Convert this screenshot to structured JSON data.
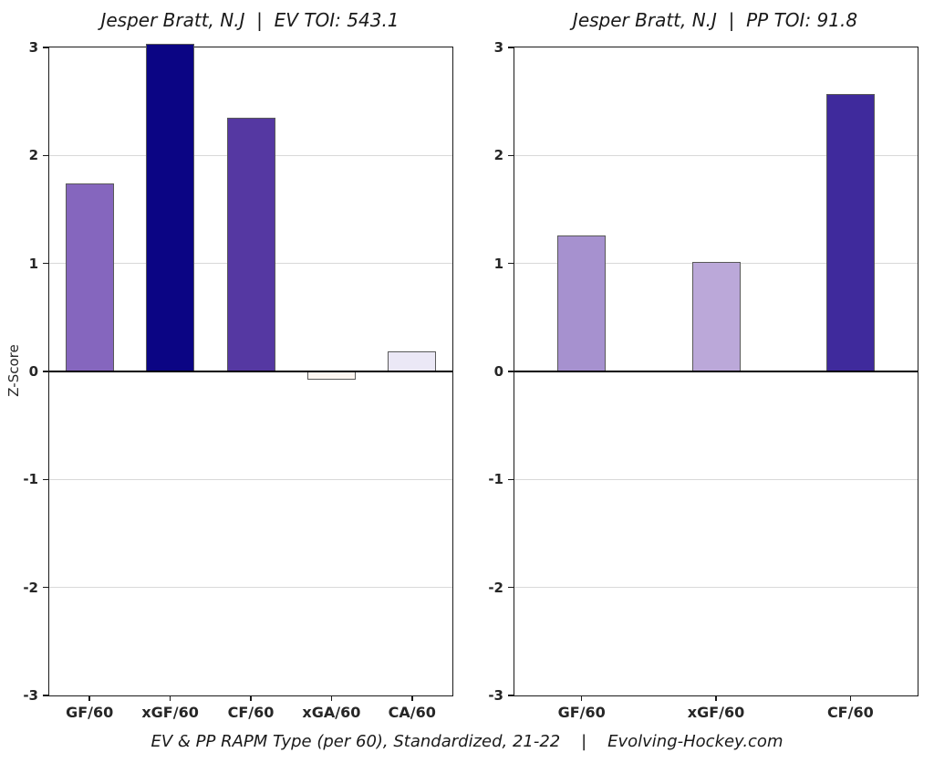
{
  "page": {
    "caption": "EV & PP RAPM Type (per 60), Standardized, 21-22    |    Evolving-Hockey.com"
  },
  "colors": {
    "grid": "#d9d9d9",
    "axis": "#1a1a1a",
    "zero_line": "#000000",
    "bar_border": "#595959",
    "text": "#262626"
  },
  "chart_data": [
    {
      "type": "bar",
      "title": "Jesper Bratt, N.J  |  EV TOI: 543.1",
      "ylabel": "Z-Score",
      "ylim": [
        -3,
        3
      ],
      "yticks": [
        3,
        2,
        1,
        0,
        -1,
        -2,
        -3
      ],
      "grid": "horizontal",
      "legend": "none",
      "categories": [
        "GF/60",
        "xGF/60",
        "CF/60",
        "xGA/60",
        "CA/60"
      ],
      "values": [
        1.74,
        3.03,
        2.35,
        -0.08,
        0.19
      ],
      "bar_colors": [
        "#8566be",
        "#0b0584",
        "#5538a2",
        "#fdf6f1",
        "#ebe8f6"
      ]
    },
    {
      "type": "bar",
      "title": "Jesper Bratt, N.J  |  PP TOI: 91.8",
      "ylim": [
        -3,
        3
      ],
      "yticks": [
        3,
        2,
        1,
        0,
        -1,
        -2,
        -3
      ],
      "grid": "horizontal",
      "legend": "none",
      "categories": [
        "GF/60",
        "xGF/60",
        "CF/60"
      ],
      "values": [
        1.26,
        1.01,
        2.57
      ],
      "bar_colors": [
        "#a691cf",
        "#bba8d9",
        "#3f2a9c"
      ]
    }
  ]
}
